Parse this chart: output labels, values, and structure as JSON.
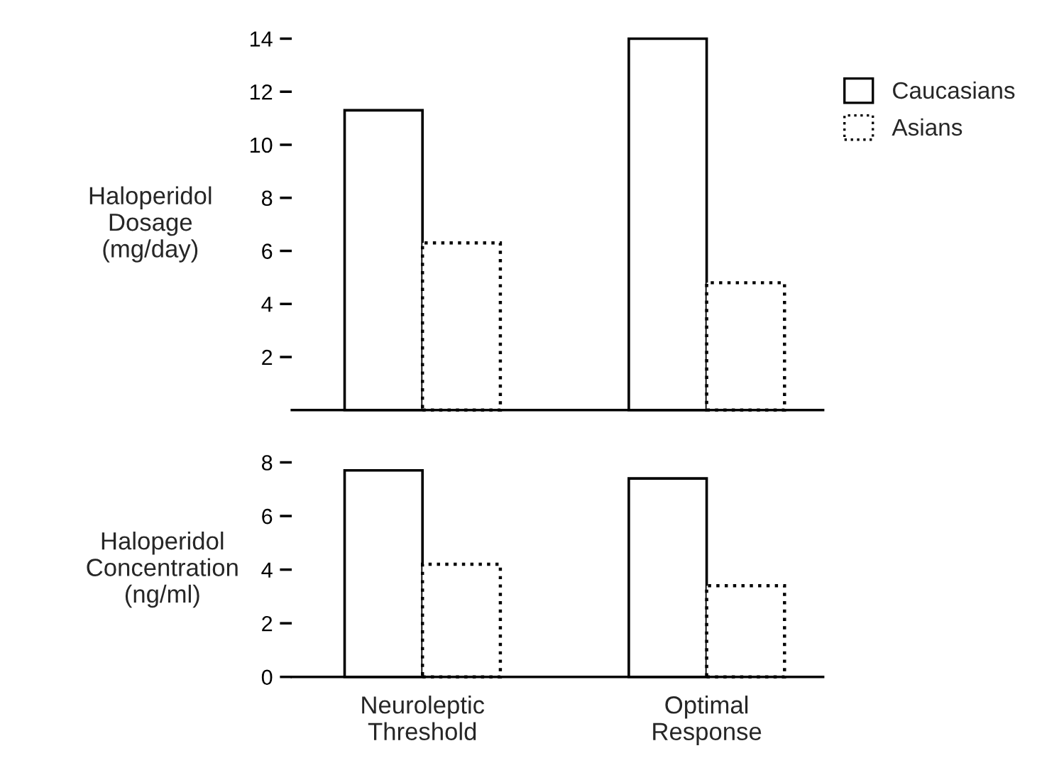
{
  "chart_data": [
    {
      "type": "bar",
      "ylabel": "Haloperidol\nDosage\n(mg/day)",
      "categories": [
        null,
        null
      ],
      "series": [
        {
          "name": "Caucasians",
          "color": "#ffffff",
          "line_style": "solid",
          "values": [
            11.3,
            14.0
          ]
        },
        {
          "name": "Asians",
          "color": "#ffffff",
          "line_style": "dotted",
          "values": [
            6.3,
            4.8
          ]
        }
      ],
      "ylim": [
        0,
        14
      ],
      "yticks": [
        2,
        4,
        6,
        8,
        10,
        12,
        14
      ],
      "tick_labels": "y",
      "legend": "top right"
    },
    {
      "type": "bar",
      "ylabel": "Haloperidol\nConcentration\n(ng/ml)",
      "categories": [
        "Neuroleptic\nThreshold",
        "Optimal\nResponse"
      ],
      "series": [
        {
          "color": "#ffffff",
          "line_style": "solid",
          "values": [
            7.7,
            7.4
          ]
        },
        {
          "color": "#ffffff",
          "line_style": "dotted",
          "values": [
            4.2,
            3.4
          ]
        }
      ],
      "ylim": [
        0,
        8
      ],
      "yticks": [
        0,
        2,
        4,
        6,
        8
      ]
    }
  ]
}
